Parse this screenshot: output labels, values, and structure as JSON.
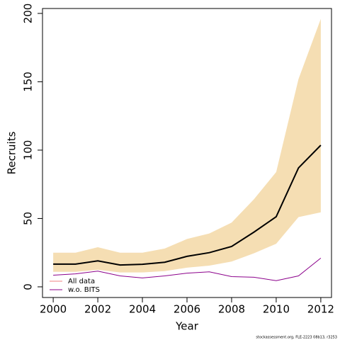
{
  "chart_data": {
    "type": "line",
    "x_label": "Year",
    "y_label": "Recruits",
    "footer": "stockassessment.org, FLE-2223  08b13, r3253",
    "x": [
      2000,
      2001,
      2002,
      2003,
      2004,
      2005,
      2006,
      2007,
      2008,
      2009,
      2010,
      2011,
      2012
    ],
    "band": {
      "color": "#f5deb3",
      "lower": [
        11,
        11,
        12.5,
        10.5,
        10.5,
        11.5,
        14,
        15.5,
        18.5,
        24.5,
        31.5,
        51,
        54.5
      ],
      "upper": [
        25,
        25,
        29,
        25,
        25,
        28,
        35,
        39,
        47,
        64,
        84,
        152,
        196
      ]
    },
    "series": [
      {
        "name": "All data",
        "color": "#000000",
        "legend_color": "#f08080",
        "values": [
          16.6,
          16.6,
          19,
          16,
          16.5,
          18,
          22.3,
          25,
          29.5,
          40,
          51.3,
          87,
          103.6
        ]
      },
      {
        "name": "w.o. BITS",
        "color": "#8b008b",
        "legend_color": "#8b008b",
        "values": [
          8.5,
          9.5,
          11.5,
          8,
          6.5,
          8,
          10,
          11,
          7.5,
          7,
          4.5,
          8,
          21
        ]
      }
    ],
    "xlim": [
      1999.52,
      2012.48
    ],
    "ylim": [
      -7.8,
      203.6
    ],
    "xticks": [
      2000,
      2002,
      2004,
      2006,
      2008,
      2010,
      2012
    ],
    "yticks": [
      0,
      50,
      100,
      150,
      200
    ],
    "legend": "bottomleft"
  }
}
